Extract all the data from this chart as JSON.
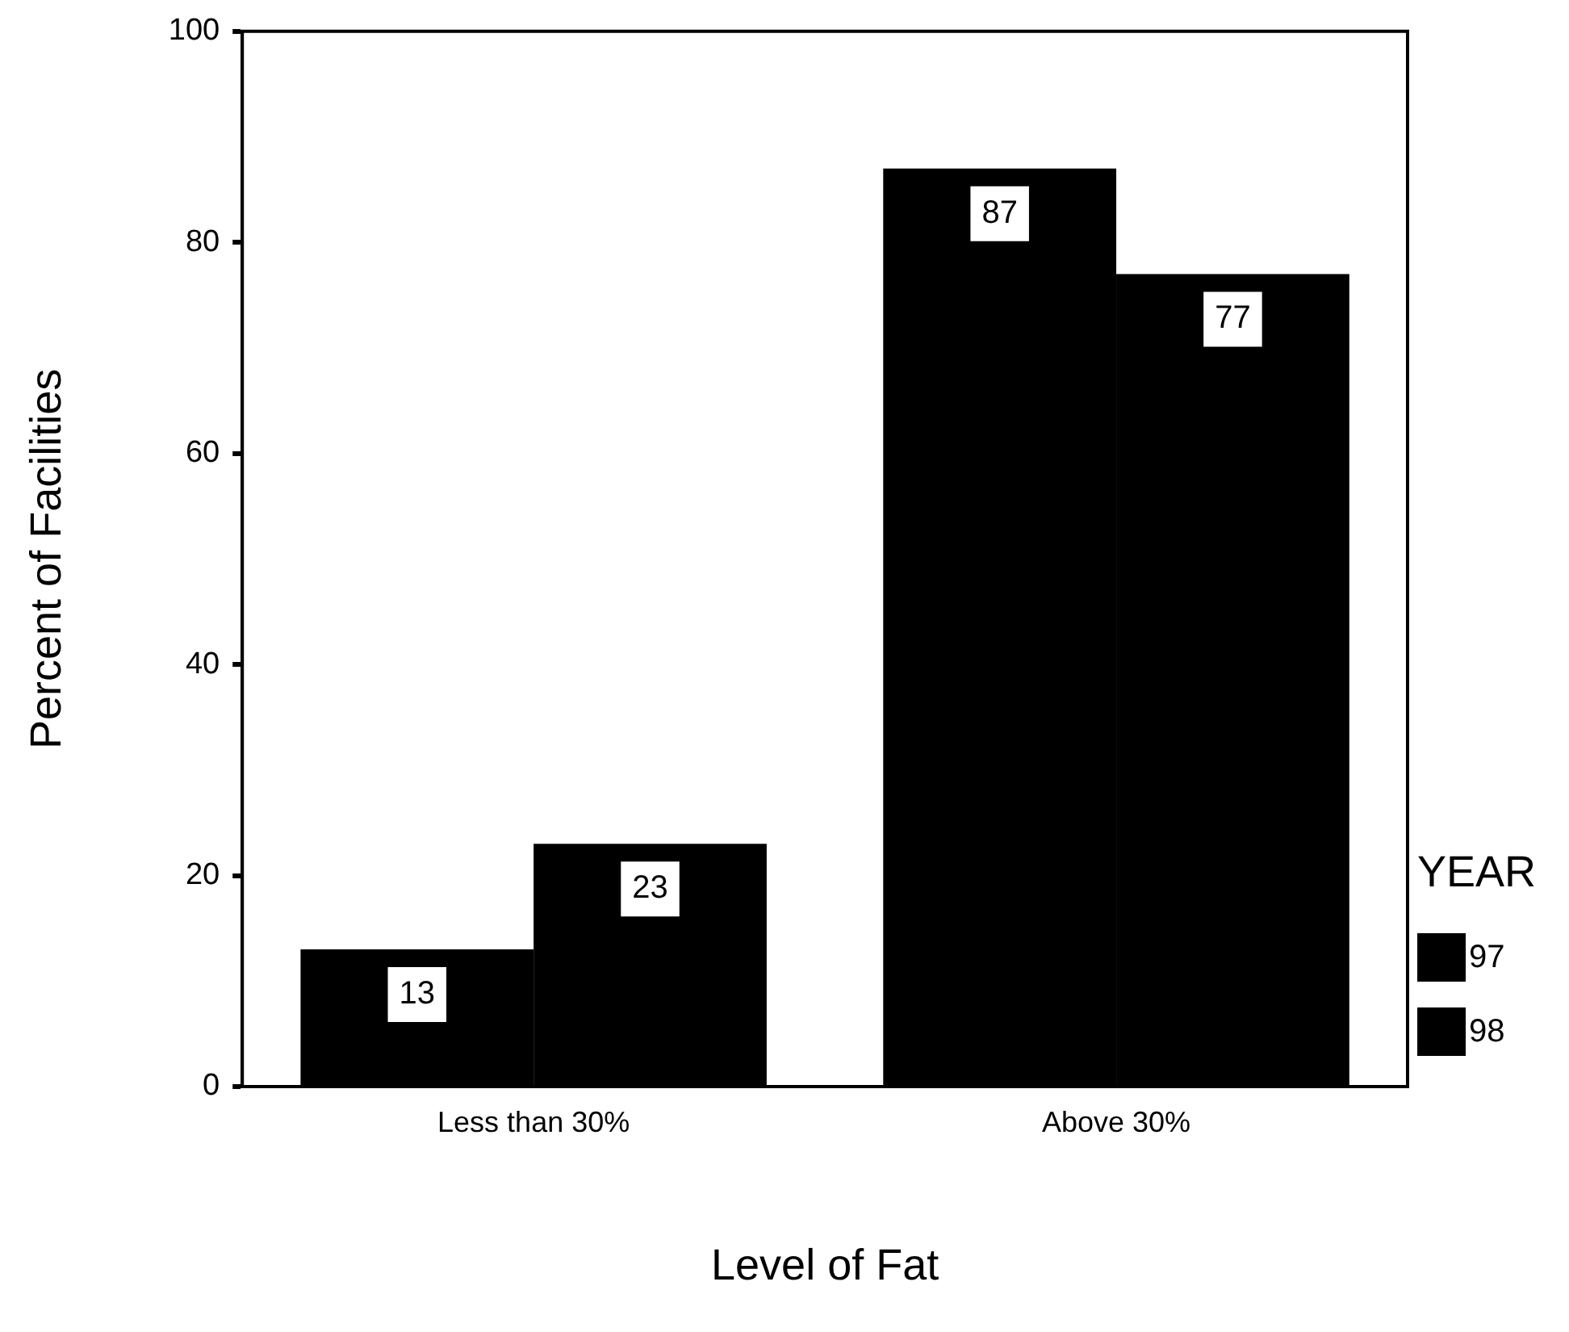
{
  "chart_data": {
    "type": "bar",
    "xlabel": "Level of Fat",
    "ylabel": "Percent of Facilities",
    "legend_title": "YEAR",
    "categories": [
      "Less than 30%",
      "Above 30%"
    ],
    "series": [
      {
        "name": "97",
        "color": "#000000",
        "values": [
          13,
          87
        ]
      },
      {
        "name": "98",
        "color": "#000000",
        "values": [
          23,
          77
        ]
      }
    ],
    "ylim": [
      0,
      100
    ],
    "yticks": [
      0,
      20,
      40,
      60,
      80,
      100
    ],
    "grid": false,
    "legend": "right",
    "data_labels": true
  }
}
